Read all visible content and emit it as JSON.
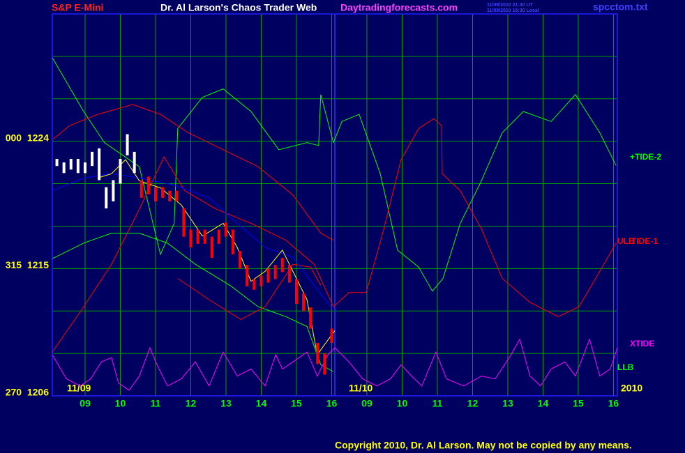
{
  "chart_data": {
    "type": "line",
    "title": "Dr. Al Larson's Chaos Trader Web",
    "instrument": "S&P E-Mini",
    "website": "Daytradingforecasts.com",
    "timestamp_ut": "11/09/2010 21:30 UT",
    "timestamp_local": "11/09/2010 16:30 Local",
    "file": "spcctom.txt",
    "copyright": "Copyright 2010, Dr. Al Larson. May not be copied by any means.",
    "annotations": [
      "11/09",
      "11/10",
      "2010"
    ],
    "xlim": [
      -0.93,
      15.11
    ],
    "xticks": [
      {
        "value": 0,
        "label": "09"
      },
      {
        "value": 1,
        "label": "10"
      },
      {
        "value": 2,
        "label": "11"
      },
      {
        "value": 3,
        "label": "12"
      },
      {
        "value": 4,
        "label": "13"
      },
      {
        "value": 5,
        "label": "14"
      },
      {
        "value": 6,
        "label": "15"
      },
      {
        "value": 7,
        "label": "16"
      },
      {
        "value": 8,
        "label": "09"
      },
      {
        "value": 9,
        "label": "10"
      },
      {
        "value": 10,
        "label": "11"
      },
      {
        "value": 11,
        "label": "12"
      },
      {
        "value": 12,
        "label": "13"
      },
      {
        "value": 13,
        "label": "14"
      },
      {
        "value": 14,
        "label": "15"
      },
      {
        "value": 15,
        "label": "16"
      }
    ],
    "ylim": [
      1206,
      1233
    ],
    "yticks": [
      {
        "value": 1224,
        "label": "000  1224"
      },
      {
        "value": 1215,
        "label": "315  1215"
      },
      {
        "value": 1206,
        "label": "270  1206"
      }
    ],
    "ygrid": [
      1209,
      1212,
      1218,
      1221,
      1227,
      1230,
      1233
    ],
    "grid": true,
    "grid_color": "#00a000",
    "price_bars": [
      {
        "color": "#ffffff",
        "x": [
          -0.8,
          -0.6,
          -0.4,
          -0.2,
          0,
          0.2,
          0.4,
          0.6,
          0.8,
          1.0,
          1.2,
          1.4
        ],
        "high": [
          1222.75,
          1222.5,
          1222.75,
          1222.75,
          1222.5,
          1223.25,
          1223.5,
          1220.75,
          1221.25,
          1222.75,
          1224.5,
          1223.25
        ],
        "low": [
          1222.25,
          1221.75,
          1222.0,
          1221.75,
          1221.75,
          1222.25,
          1221.25,
          1219.25,
          1219.75,
          1221.0,
          1223.0,
          1221.75
        ]
      },
      {
        "color": "#ff0000",
        "x": [
          1.6,
          1.8,
          2.0,
          2.2,
          2.4,
          2.6,
          2.8,
          3.0,
          3.2,
          3.4,
          3.6,
          3.8,
          4.0,
          4.2,
          4.4,
          4.6,
          4.8,
          5.0,
          5.2,
          5.4,
          5.6,
          5.8,
          6.0,
          6.2,
          6.4,
          6.6,
          6.8,
          7.0
        ],
        "high": [
          1221.25,
          1221.5,
          1220.75,
          1220.75,
          1220.5,
          1220.5,
          1219.25,
          1217.75,
          1217.75,
          1217.75,
          1217.25,
          1217.75,
          1218.25,
          1217.75,
          1216.25,
          1215.25,
          1214.25,
          1214.5,
          1215.0,
          1215.25,
          1215.75,
          1215.25,
          1214.25,
          1213.25,
          1212.25,
          1209.75,
          1209.0,
          1210.75
        ],
        "low": [
          1220.0,
          1220.25,
          1219.75,
          1220.0,
          1219.75,
          1219.75,
          1217.25,
          1216.5,
          1216.75,
          1216.75,
          1215.75,
          1216.75,
          1217.25,
          1216.0,
          1215.0,
          1213.75,
          1213.5,
          1213.75,
          1214.0,
          1214.25,
          1214.75,
          1214.0,
          1212.5,
          1212.0,
          1210.75,
          1208.25,
          1207.5,
          1209.75
        ]
      }
    ],
    "series": [
      {
        "name": "+TIDE-2",
        "color": "#00ff00",
        "x": [
          -0.93,
          -0.04,
          0.55,
          1.54,
          2.14,
          2.53,
          2.63,
          3.33,
          3.92,
          4.71,
          5.5,
          6.3,
          6.63,
          6.69,
          7.05,
          7.29,
          7.78,
          8.38,
          8.87,
          9.47,
          9.86,
          10.16,
          10.65,
          11.25,
          11.84,
          12.44,
          13.23,
          13.92,
          14.61,
          15.07
        ],
        "values": [
          1229.9,
          1226.1,
          1223.9,
          1222.2,
          1216.0,
          1218.2,
          1224.9,
          1227.1,
          1227.7,
          1226.1,
          1223.4,
          1223.9,
          1223.7,
          1227.3,
          1223.9,
          1225.4,
          1225.9,
          1221.7,
          1216.3,
          1215.1,
          1213.4,
          1214.3,
          1218.2,
          1221.2,
          1224.6,
          1226.1,
          1225.4,
          1227.3,
          1224.6,
          1222.3
        ]
      },
      {
        "name": "TIDE-1",
        "color": "#ff0000",
        "x": [
          -0.93,
          -0.04,
          0.75,
          1.54,
          2.24,
          2.83,
          3.72,
          4.71,
          5.7,
          6.5,
          7.05,
          7.49,
          7.98,
          8.48,
          8.97,
          9.47,
          9.9,
          10.12,
          10.14,
          10.65,
          11.25,
          11.84,
          12.63,
          13.43,
          14.02,
          14.61,
          15.07
        ],
        "values": [
          1209.1,
          1212.3,
          1215.3,
          1219.2,
          1222.9,
          1220.5,
          1219.2,
          1218.2,
          1217.0,
          1215.3,
          1212.3,
          1213.3,
          1213.3,
          1217.8,
          1222.7,
          1224.9,
          1225.6,
          1225.1,
          1221.7,
          1220.5,
          1217.8,
          1214.3,
          1212.6,
          1211.6,
          1212.3,
          1214.8,
          1216.8
        ]
      },
      {
        "name": "ULB",
        "color": "#ff0000",
        "x": [
          -0.93,
          -0.44,
          0.36,
          1.35,
          2.14,
          2.93,
          3.92,
          4.91,
          5.9,
          6.69,
          7.05
        ],
        "values": [
          1224.1,
          1225.1,
          1225.9,
          1226.6,
          1225.9,
          1224.6,
          1223.4,
          1222.2,
          1220.2,
          1217.5,
          1217.0
        ]
      },
      {
        "name": "LLB",
        "color": "#00ff00",
        "x": [
          -0.93,
          -0.04,
          0.75,
          1.54,
          2.34,
          3.13,
          4.12,
          4.91,
          5.7,
          6.3,
          6.69,
          7.05
        ],
        "values": [
          1215.7,
          1216.8,
          1217.5,
          1217.5,
          1216.8,
          1215.3,
          1213.8,
          1212.3,
          1211.6,
          1210.9,
          1208.2,
          1207.7
        ]
      },
      {
        "color": "#ff0000",
        "x": [
          2.63,
          3.52,
          4.42,
          5.11,
          5.9,
          6.4,
          6.69
        ],
        "values": [
          1214.3,
          1212.8,
          1211.4,
          1212.3,
          1215.3,
          1215.1,
          1213.8
        ]
      },
      {
        "color": "#0000ff",
        "x": [
          -0.93,
          -0.04,
          0.75,
          1.54,
          2.53,
          3.52,
          4.32,
          5.11,
          5.9,
          6.5,
          7.05
        ],
        "values": [
          1220.5,
          1221.4,
          1221.7,
          1221.4,
          1220.9,
          1220.0,
          1218.2,
          1216.5,
          1215.8,
          1213.8,
          1212.1
        ]
      },
      {
        "color": "#ffff00",
        "x": [
          0.36,
          0.75,
          1.15,
          1.54,
          2.14,
          2.73,
          3.33,
          3.92,
          4.32,
          4.71,
          5.11,
          5.6,
          5.9,
          6.3,
          6.59,
          6.79,
          7.09
        ],
        "values": [
          1221.4,
          1221.7,
          1222.7,
          1221.2,
          1220.7,
          1219.5,
          1217.3,
          1218.2,
          1216.5,
          1214.1,
          1214.8,
          1216.3,
          1214.8,
          1212.8,
          1208.9,
          1209.6,
          1210.6
        ]
      },
      {
        "name": "XTIDE",
        "color": "#ff00ff",
        "x": [
          -0.93,
          -0.53,
          -0.14,
          0.16,
          0.46,
          0.75,
          0.95,
          1.25,
          1.54,
          1.84,
          2.04,
          2.34,
          2.73,
          3.13,
          3.52,
          3.92,
          4.32,
          4.71,
          5.11,
          5.41,
          5.6,
          5.9,
          6.3,
          6.59,
          6.89,
          7.09,
          7.49,
          7.88,
          8.28,
          8.67,
          8.97,
          9.27,
          9.56,
          9.96,
          10.26,
          10.75,
          11.25,
          11.64,
          12.04,
          12.34,
          12.63,
          12.93,
          13.23,
          13.62,
          13.92,
          14.32,
          14.61,
          14.91,
          15.11
        ],
        "values": [
          1208.9,
          1207.2,
          1206.7,
          1207.2,
          1208.4,
          1208.7,
          1206.9,
          1206.4,
          1207.4,
          1209.4,
          1208.2,
          1206.7,
          1207.2,
          1208.4,
          1206.7,
          1209.1,
          1207.4,
          1207.9,
          1206.7,
          1208.9,
          1207.9,
          1208.4,
          1209.1,
          1207.4,
          1208.9,
          1209.4,
          1208.4,
          1207.2,
          1206.7,
          1207.2,
          1208.2,
          1207.4,
          1206.7,
          1209.1,
          1207.2,
          1206.7,
          1207.4,
          1207.2,
          1208.7,
          1210.0,
          1207.4,
          1206.7,
          1207.9,
          1208.4,
          1207.4,
          1210.0,
          1207.4,
          1207.9,
          1209.4
        ]
      }
    ]
  }
}
